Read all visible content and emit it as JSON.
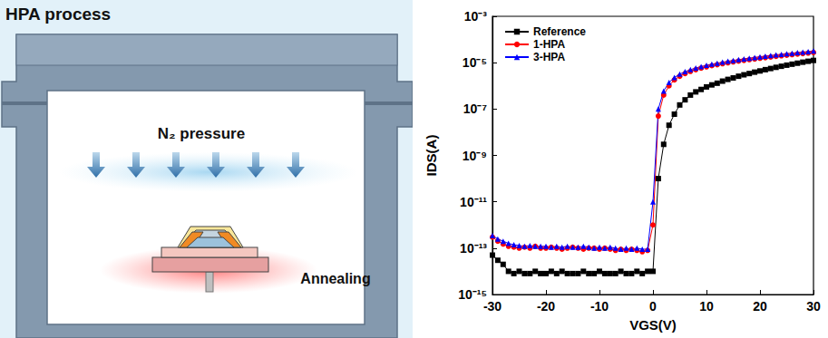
{
  "panel_title": "HPA process",
  "diagram": {
    "gas_label": "N₂ pressure",
    "heater_label": "Annealing"
  },
  "chart_data": {
    "type": "line",
    "xlabel": "VGS(V)",
    "ylabel": "IDS(A)",
    "log": "y",
    "grid": false,
    "legend": "upper left",
    "xlim": [
      -30,
      30
    ],
    "xticks": [
      -30,
      -20,
      -10,
      0,
      10,
      20,
      30
    ],
    "ylim": [
      1e-15,
      0.001
    ],
    "yticks": [
      {
        "value": 1e-15,
        "label": "10⁻¹⁵"
      },
      {
        "value": 1e-13,
        "label": "10⁻¹³"
      },
      {
        "value": 1e-11,
        "label": "10⁻¹¹"
      },
      {
        "value": 1e-09,
        "label": "10⁻⁹"
      },
      {
        "value": 1e-07,
        "label": "10⁻⁷"
      },
      {
        "value": 1e-05,
        "label": "10⁻⁵"
      },
      {
        "value": 0.001,
        "label": "10⁻³"
      }
    ],
    "x": [
      -30,
      -29,
      -28,
      -27,
      -26,
      -25,
      -24,
      -23,
      -22,
      -21,
      -20,
      -19,
      -18,
      -17,
      -16,
      -15,
      -14,
      -13,
      -12,
      -11,
      -10,
      -9,
      -8,
      -7,
      -6,
      -5,
      -4,
      -3,
      -2,
      -1,
      0,
      1,
      2,
      3,
      4,
      5,
      6,
      7,
      8,
      9,
      10,
      11,
      12,
      13,
      14,
      15,
      16,
      17,
      18,
      19,
      20,
      21,
      22,
      23,
      24,
      25,
      26,
      27,
      28,
      29,
      30
    ],
    "series": [
      {
        "name": "Reference",
        "color": "#000000",
        "marker": "square",
        "line_style": "solid",
        "values": [
          5e-14,
          3e-14,
          2e-14,
          1e-14,
          8e-15,
          1e-14,
          8e-15,
          8e-15,
          1e-14,
          8e-15,
          8e-15,
          1e-14,
          8e-15,
          1e-14,
          8e-15,
          8e-15,
          8e-15,
          1e-14,
          8e-15,
          8e-15,
          1e-14,
          8e-15,
          8e-15,
          8e-15,
          1e-14,
          8e-15,
          8e-15,
          1e-14,
          8e-15,
          1e-14,
          1e-14,
          1e-10,
          3e-09,
          2e-08,
          6e-08,
          1.5e-07,
          2.5e-07,
          4e-07,
          5.5e-07,
          7e-07,
          9e-07,
          1.1e-06,
          1.3e-06,
          1.6e-06,
          1.9e-06,
          2.2e-06,
          2.6e-06,
          3e-06,
          3.4e-06,
          3.9e-06,
          4.4e-06,
          5e-06,
          5.6e-06,
          6.3e-06,
          7e-06,
          7.8e-06,
          8.6e-06,
          9.5e-06,
          1.05e-05,
          1.15e-05,
          1.25e-05
        ]
      },
      {
        "name": "1-HPA",
        "color": "#ff0000",
        "marker": "circle",
        "line_style": "solid",
        "values": [
          3e-13,
          2e-13,
          1.5e-13,
          1.2e-13,
          1.1e-13,
          1e-13,
          1.1e-13,
          1e-13,
          1.2e-13,
          1e-13,
          1e-13,
          1.1e-13,
          1e-13,
          9e-14,
          1e-13,
          1.1e-13,
          1e-13,
          9e-14,
          1e-13,
          1e-13,
          9e-14,
          1e-13,
          9e-14,
          8e-14,
          9e-14,
          8e-14,
          9e-14,
          8e-14,
          7e-14,
          8e-14,
          1e-12,
          5e-08,
          4e-07,
          1e-06,
          1.8e-06,
          2.6e-06,
          3.4e-06,
          4.2e-06,
          5e-06,
          5.8e-06,
          6.6e-06,
          7.4e-06,
          8.2e-06,
          9e-06,
          9.9e-06,
          1.08e-05,
          1.17e-05,
          1.26e-05,
          1.35e-05,
          1.45e-05,
          1.55e-05,
          1.65e-05,
          1.76e-05,
          1.87e-05,
          1.98e-05,
          2.1e-05,
          2.22e-05,
          2.34e-05,
          2.47e-05,
          2.6e-05,
          2.75e-05
        ]
      },
      {
        "name": "3-HPA",
        "color": "#0000ff",
        "marker": "triangle",
        "line_style": "solid",
        "values": [
          3.5e-13,
          2.5e-13,
          2e-13,
          1.6e-13,
          1.4e-13,
          1.3e-13,
          1.2e-13,
          1.3e-13,
          1.2e-13,
          1.2e-13,
          1.2e-13,
          1.1e-13,
          1.2e-13,
          1.1e-13,
          1.2e-13,
          1.1e-13,
          1.1e-13,
          1.2e-13,
          1.1e-13,
          1e-13,
          1.1e-13,
          1e-13,
          1.1e-13,
          1e-13,
          9e-14,
          1e-13,
          9e-14,
          1e-13,
          9e-14,
          9e-14,
          1e-11,
          1e-07,
          6e-07,
          1.4e-06,
          2.3e-06,
          3.2e-06,
          4.1e-06,
          5e-06,
          5.9e-06,
          6.8e-06,
          7.7e-06,
          8.6e-06,
          9.5e-06,
          1.05e-05,
          1.15e-05,
          1.25e-05,
          1.35e-05,
          1.46e-05,
          1.57e-05,
          1.68e-05,
          1.8e-05,
          1.92e-05,
          2.04e-05,
          2.17e-05,
          2.3e-05,
          2.44e-05,
          2.58e-05,
          2.72e-05,
          2.87e-05,
          3.02e-05,
          3.18e-05
        ]
      }
    ]
  }
}
